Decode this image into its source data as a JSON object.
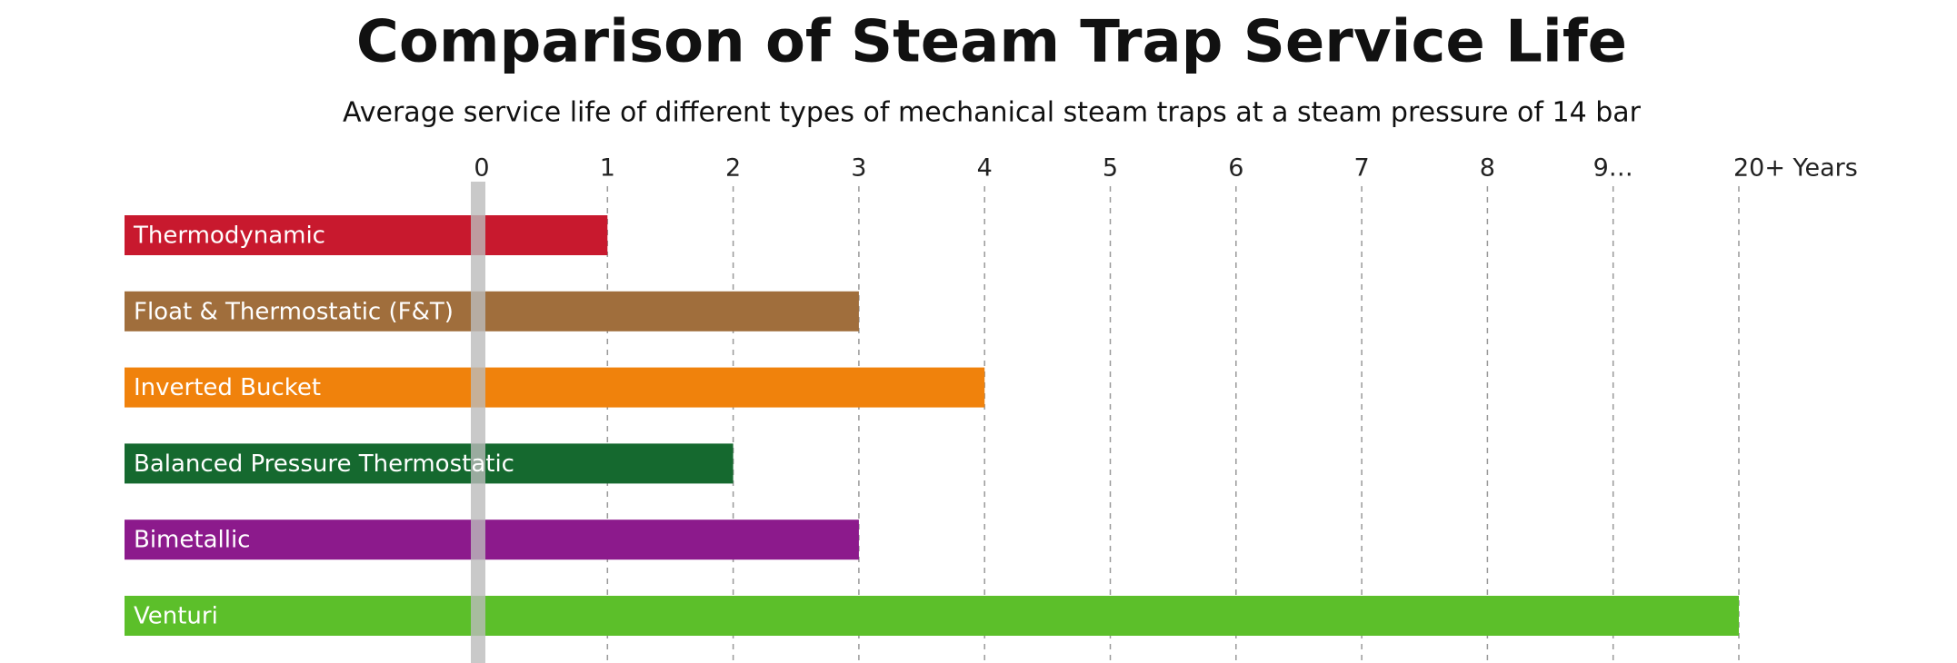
{
  "chart_data": {
    "type": "barh",
    "title": "Comparison of Steam Trap Service Life",
    "subtitle": "Average service life of different types of mechanical steam traps at a steam pressure of 14 bar",
    "categories": [
      "Thermodynamic",
      "Float & Thermostatic (F&T)",
      "Inverted Bucket",
      "Balanced Pressure Thermostatic",
      "Bimetallic",
      "Venturi"
    ],
    "values": [
      1,
      3,
      4,
      2,
      3,
      20
    ],
    "colors": [
      "#c8192e",
      "#a06e3c",
      "#f0820c",
      "#15692f",
      "#8c1a8c",
      "#5cbf2a"
    ],
    "xlim": [
      0,
      20
    ],
    "xticks": [
      0,
      1,
      2,
      3,
      4,
      5,
      6,
      7,
      8,
      {
        "value": 9,
        "label": "9…"
      },
      {
        "value": 20,
        "label": "20+ Years"
      }
    ],
    "grid": true
  }
}
